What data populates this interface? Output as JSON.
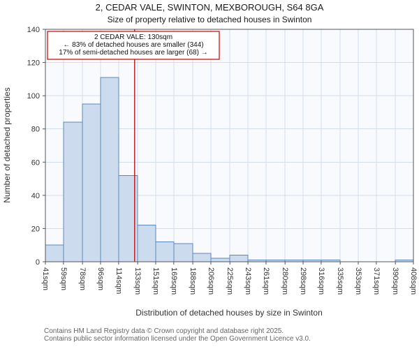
{
  "annotation": {
    "line1": "2 CEDAR VALE: 130sqm",
    "line2": "← 83% of detached houses are smaller (344)",
    "line3": "17% of semi-detached houses are larger (68) →"
  },
  "footer": {
    "line1": "Contains HM Land Registry data © Crown copyright and database right 2025.",
    "line2": "Contains public sector information licensed under the Open Government Licence v3.0."
  },
  "chart_data": {
    "type": "bar",
    "title": "2, CEDAR VALE, SWINTON, MEXBOROUGH, S64 8GA",
    "subtitle": "Size of property relative to detached houses in Swinton",
    "xlabel": "Distribution of detached houses by size in Swinton",
    "ylabel": "Number of detached properties",
    "xlim": [
      41,
      408
    ],
    "ylim": [
      0,
      140
    ],
    "yticks": [
      0,
      20,
      40,
      60,
      80,
      100,
      120,
      140
    ],
    "bin_edges": [
      41,
      59,
      78,
      96,
      114,
      133,
      151,
      169,
      188,
      206,
      225,
      243,
      261,
      280,
      298,
      316,
      335,
      353,
      371,
      390,
      408
    ],
    "tick_labels": [
      "41sqm",
      "59sqm",
      "78sqm",
      "96sqm",
      "114sqm",
      "133sqm",
      "151sqm",
      "169sqm",
      "188sqm",
      "206sqm",
      "225sqm",
      "243sqm",
      "261sqm",
      "280sqm",
      "298sqm",
      "316sqm",
      "335sqm",
      "353sqm",
      "371sqm",
      "390sqm",
      "408sqm"
    ],
    "values": [
      10,
      84,
      95,
      111,
      52,
      22,
      12,
      11,
      5,
      2,
      4,
      1,
      1,
      1,
      1,
      1,
      0,
      0,
      0,
      1
    ],
    "marker_value": 130,
    "grid": true,
    "colors": {
      "bar_fill": "#ccdcee",
      "bar_stroke": "#5b87be",
      "marker": "#bb0000",
      "grid": "#d4ddee",
      "axis": "#555555",
      "plot_bg": "#f8fafd"
    }
  }
}
